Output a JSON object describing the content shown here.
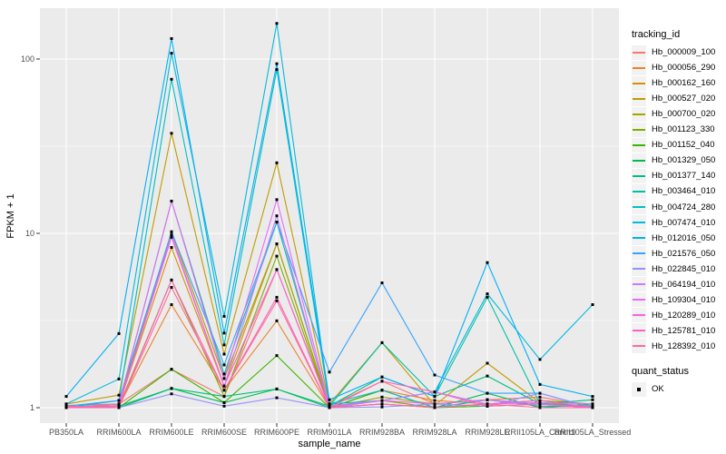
{
  "figure": {
    "y_axis": {
      "title": "FPKM + 1",
      "tick_labels": [
        "100",
        "10",
        "1"
      ]
    },
    "x_axis": {
      "title": "sample_name"
    },
    "legend": {
      "tracking_title": "tracking_id",
      "quant_title": "quant_status",
      "quant_items": [
        {
          "label": "OK",
          "marker": "black-square"
        }
      ]
    },
    "colors": {
      "panel_bg": "#EBEBEB",
      "grid": "#FFFFFF",
      "axis_text": "#4D4D4D",
      "tick_mark": "#333333",
      "legend_key_bg": "#F2F2F2",
      "point": "#000000"
    }
  },
  "chart_data": {
    "type": "line",
    "title": "",
    "xlabel": "sample_name",
    "ylabel": "FPKM + 1",
    "y_scale": "log10",
    "ylim": [
      0.82,
      196
    ],
    "y_major_ticks": [
      1,
      10,
      100
    ],
    "y_minor_ticks": [
      3.162,
      31.62
    ],
    "grid": "white major+minor horizontal, white vertical per category, on gray panel",
    "legend_position": "right",
    "point_marker": "small black square at every data point",
    "categories": [
      "PB350LA",
      "RRIM600LA",
      "RRIM600LE",
      "RRIM600SE",
      "RRIM600PE",
      "RRIM901LA",
      "RRIM928BA",
      "RRIM928LA",
      "RRIM928LE",
      "RRII105LA_Control",
      "RRII105LA_Stressed"
    ],
    "series": [
      {
        "name": "Hb_000009_100",
        "color": "#F8766D",
        "values": [
          1.03,
          1.05,
          1.66,
          1.16,
          6.2,
          1.02,
          1.42,
          1.05,
          1.11,
          1.15,
          1.02
        ]
      },
      {
        "name": "Hb_000056_290",
        "color": "#EA8331",
        "values": [
          1.0,
          1.02,
          3.9,
          1.26,
          3.15,
          1.0,
          1.26,
          1.1,
          1.05,
          1.1,
          1.0
        ]
      },
      {
        "name": "Hb_000162_160",
        "color": "#D89000",
        "values": [
          1.0,
          1.04,
          8.3,
          1.33,
          8.7,
          1.02,
          1.1,
          1.0,
          1.11,
          1.05,
          1.0
        ]
      },
      {
        "name": "Hb_000527_020",
        "color": "#C09B00",
        "values": [
          1.05,
          1.18,
          37.5,
          2.03,
          25.4,
          1.05,
          2.36,
          1.03,
          1.8,
          1.07,
          1.02
        ]
      },
      {
        "name": "Hb_000700_020",
        "color": "#A3A500",
        "values": [
          1.0,
          1.05,
          10.2,
          1.47,
          8.7,
          1.0,
          1.15,
          1.05,
          1.11,
          1.05,
          1.02
        ]
      },
      {
        "name": "Hb_001123_330",
        "color": "#7CAE00",
        "values": [
          1.0,
          1.02,
          5.4,
          1.16,
          7.4,
          1.0,
          1.1,
          1.0,
          1.05,
          1.1,
          1.05
        ]
      },
      {
        "name": "Hb_001152_040",
        "color": "#39B600",
        "values": [
          1.02,
          1.0,
          1.66,
          1.07,
          1.99,
          1.0,
          1.26,
          1.0,
          1.02,
          1.05,
          1.0
        ]
      },
      {
        "name": "Hb_001329_050",
        "color": "#00BB4E",
        "values": [
          1.0,
          1.0,
          1.29,
          1.07,
          1.28,
          1.0,
          1.05,
          1.0,
          1.21,
          1.0,
          1.05
        ]
      },
      {
        "name": "Hb_001377_140",
        "color": "#00BF7D",
        "values": [
          1.0,
          1.02,
          1.29,
          1.16,
          1.28,
          1.02,
          1.5,
          1.16,
          1.52,
          1.05,
          1.11
        ]
      },
      {
        "name": "Hb_003464_010",
        "color": "#00C1A3",
        "values": [
          1.0,
          1.05,
          15.3,
          1.56,
          11.6,
          1.02,
          2.36,
          1.16,
          4.3,
          1.05,
          1.02
        ]
      },
      {
        "name": "Hb_004724_280",
        "color": "#00BFC4",
        "values": [
          1.0,
          1.1,
          76.5,
          2.29,
          87.0,
          1.05,
          1.26,
          1.0,
          1.11,
          1.02,
          1.02
        ]
      },
      {
        "name": "Hb_007474_010",
        "color": "#00BAE0",
        "values": [
          1.05,
          1.46,
          108.0,
          3.34,
          160.0,
          1.05,
          1.1,
          1.23,
          4.5,
          1.89,
          3.9
        ]
      },
      {
        "name": "Hb_012016_050",
        "color": "#00B0F6",
        "values": [
          1.16,
          2.66,
          131.0,
          2.68,
          94.0,
          1.11,
          1.5,
          1.16,
          6.8,
          1.36,
          1.16
        ]
      },
      {
        "name": "Hb_021576_050",
        "color": "#35A2FF",
        "values": [
          1.02,
          1.1,
          10.2,
          1.76,
          11.6,
          1.6,
          5.2,
          1.54,
          1.21,
          1.21,
          1.0
        ]
      },
      {
        "name": "Hb_022845_010",
        "color": "#9590FF",
        "values": [
          1.0,
          1.0,
          1.2,
          1.02,
          1.14,
          1.0,
          1.01,
          1.05,
          1.02,
          1.21,
          1.0
        ]
      },
      {
        "name": "Hb_064194_010",
        "color": "#C77CFF",
        "values": [
          1.0,
          1.02,
          9.5,
          1.33,
          12.6,
          1.0,
          1.1,
          1.23,
          1.05,
          1.07,
          1.05
        ]
      },
      {
        "name": "Hb_109304_010",
        "color": "#E76BF3",
        "values": [
          1.0,
          1.05,
          15.3,
          1.47,
          15.6,
          1.02,
          1.1,
          1.05,
          1.11,
          1.05,
          1.0
        ]
      },
      {
        "name": "Hb_120289_010",
        "color": "#FA62DB",
        "values": [
          1.0,
          1.02,
          9.8,
          1.33,
          6.2,
          1.0,
          1.05,
          1.0,
          1.05,
          1.1,
          1.0
        ]
      },
      {
        "name": "Hb_125781_010",
        "color": "#FF62BC",
        "values": [
          1.0,
          1.0,
          5.4,
          1.26,
          4.3,
          1.0,
          1.42,
          1.23,
          1.02,
          1.05,
          1.0
        ]
      },
      {
        "name": "Hb_128392_010",
        "color": "#FF6A98",
        "values": [
          1.02,
          1.0,
          4.9,
          1.26,
          4.1,
          1.0,
          1.05,
          1.0,
          1.05,
          1.0,
          1.0
        ]
      }
    ]
  }
}
